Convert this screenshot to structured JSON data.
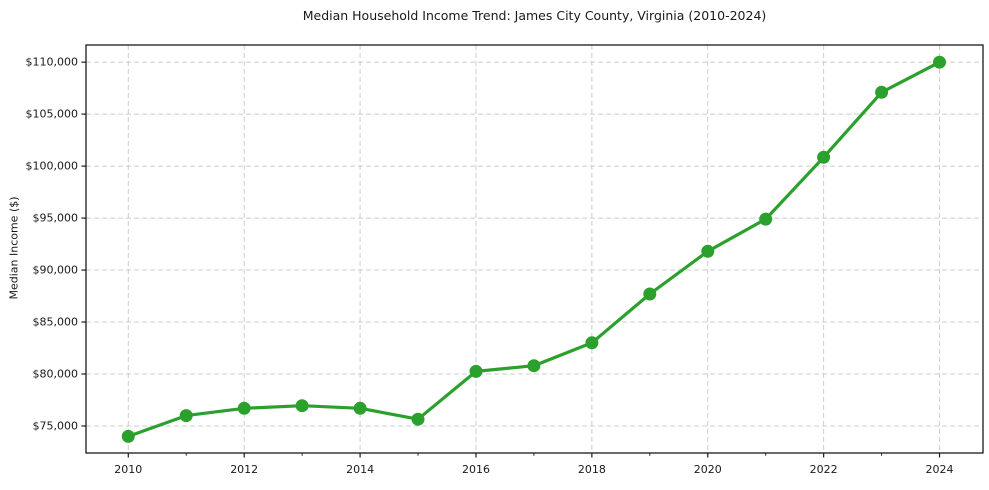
{
  "figure": {
    "title": "Median Household Income Trend: James City County, Virginia (2010-2024)"
  },
  "chart_data": {
    "type": "line",
    "title": "Median Household Income Trend: James City County, Virginia (2010-2024)",
    "xlabel": "",
    "ylabel": "Median Income ($)",
    "x": [
      2010,
      2011,
      2012,
      2013,
      2014,
      2015,
      2016,
      2017,
      2018,
      2019,
      2020,
      2021,
      2022,
      2023,
      2024
    ],
    "values": [
      74000,
      76000,
      76700,
      76950,
      76700,
      75650,
      80250,
      80800,
      83000,
      87700,
      91800,
      94900,
      100850,
      107100,
      110000
    ],
    "xlim": [
      2009.27,
      2024.75
    ],
    "ylim": [
      72400,
      111650
    ],
    "xticks": [
      2010,
      2012,
      2014,
      2016,
      2018,
      2020,
      2022,
      2024
    ],
    "xtick_labels": [
      "2010",
      "2012",
      "2014",
      "2016",
      "2018",
      "2020",
      "2022",
      "2024"
    ],
    "xticks_minor": [
      2011,
      2013,
      2015,
      2017,
      2019,
      2021,
      2023
    ],
    "yticks": [
      75000,
      80000,
      85000,
      90000,
      95000,
      100000,
      105000,
      110000
    ],
    "ytick_labels": [
      "$75,000",
      "$80,000",
      "$85,000",
      "$90,000",
      "$95,000",
      "$100,000",
      "$105,000",
      "$110,000"
    ],
    "grid": true,
    "grid_style": "dashed",
    "legend": "none",
    "marker": "circle",
    "colors": {
      "line": "#2ca02c",
      "marker": "#2ca02c",
      "grid": "#cccccc",
      "spine": "#1a1a1a",
      "text": "#1a1a1a",
      "background": "#ffffff"
    }
  }
}
